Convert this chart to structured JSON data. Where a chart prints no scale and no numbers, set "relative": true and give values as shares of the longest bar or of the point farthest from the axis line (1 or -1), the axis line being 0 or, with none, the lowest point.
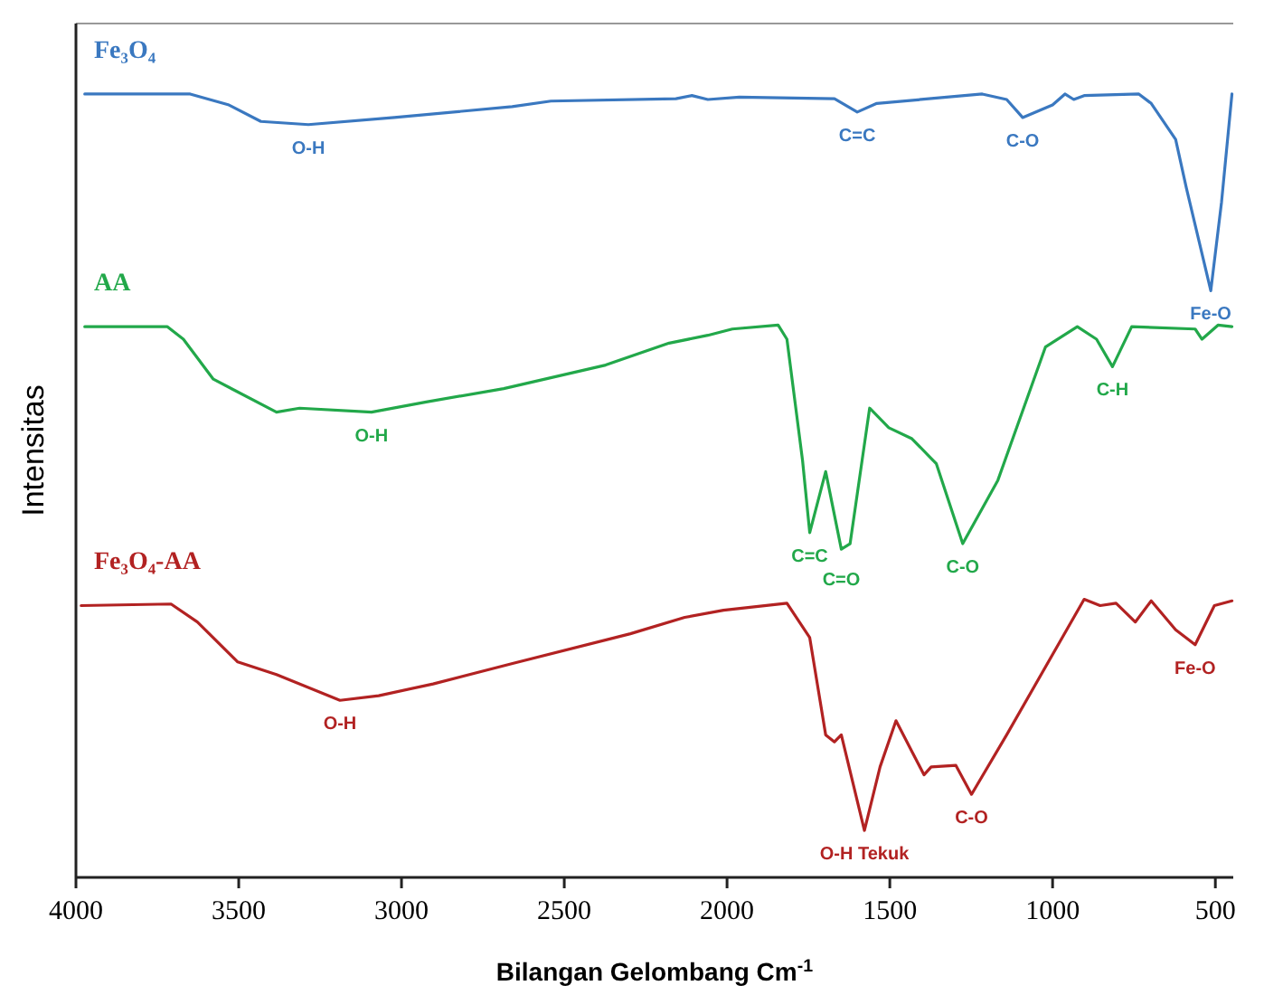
{
  "chart_data": {
    "type": "line",
    "relative": true,
    "xlabel": "Bilangan Gelombang Cm$^{-1}$",
    "ylabel": "Intensitas",
    "xlim": [
      4000,
      445
    ],
    "xticks": [
      4000,
      3500,
      3000,
      2500,
      2000,
      1500,
      1000,
      500
    ],
    "grid": false,
    "marker": "none",
    "line_style": "solid",
    "series": [
      {
        "name": "Fe₃O₄",
        "color": "#3a78c0",
        "x": [
          3973,
          3649,
          3530,
          3432,
          3286,
          3022,
          2660,
          2541,
          2157,
          2108,
          2059,
          1962,
          1670,
          1600,
          1540,
          1216,
          1141,
          1092,
          1000,
          962,
          935,
          903,
          735,
          697,
          622,
          589,
          514,
          481,
          449
        ],
        "values": [
          1.0,
          1.0,
          0.986,
          0.965,
          0.961,
          0.97,
          0.984,
          0.991,
          0.994,
          0.998,
          0.993,
          0.996,
          0.994,
          0.977,
          0.988,
          1.0,
          0.993,
          0.97,
          0.986,
          1.0,
          0.993,
          0.998,
          1.0,
          0.988,
          0.942,
          0.88,
          0.749,
          0.862,
          1.0
        ]
      },
      {
        "name": "AA",
        "color": "#22a84a",
        "x": [
          3973,
          3719,
          3670,
          3578,
          3384,
          3313,
          3092,
          2924,
          2686,
          2373,
          2178,
          2059,
          1984,
          1843,
          1816,
          1768,
          1746,
          1697,
          1649,
          1622,
          1562,
          1503,
          1432,
          1357,
          1276,
          1168,
          1022,
          924,
          865,
          816,
          757,
          562,
          541,
          492,
          449
        ],
        "values": [
          0.703,
          0.703,
          0.687,
          0.636,
          0.594,
          0.599,
          0.594,
          0.607,
          0.624,
          0.654,
          0.682,
          0.692,
          0.7,
          0.705,
          0.687,
          0.532,
          0.44,
          0.518,
          0.419,
          0.426,
          0.599,
          0.574,
          0.56,
          0.528,
          0.426,
          0.507,
          0.677,
          0.703,
          0.687,
          0.652,
          0.703,
          0.7,
          0.687,
          0.705,
          0.703
        ]
      },
      {
        "name": "Fe₃O₄-AA",
        "color": "#b22222",
        "x": [
          3984,
          3708,
          3627,
          3503,
          3384,
          3189,
          3070,
          2903,
          2659,
          2297,
          2130,
          2011,
          1816,
          1746,
          1697,
          1670,
          1649,
          1578,
          1530,
          1481,
          1395,
          1373,
          1297,
          1249,
          1141,
          903,
          854,
          805,
          746,
          697,
          622,
          562,
          503,
          449
        ],
        "values": [
          0.347,
          0.349,
          0.326,
          0.275,
          0.259,
          0.226,
          0.232,
          0.247,
          0.273,
          0.311,
          0.332,
          0.341,
          0.35,
          0.306,
          0.182,
          0.173,
          0.182,
          0.06,
          0.141,
          0.2,
          0.131,
          0.141,
          0.143,
          0.106,
          0.182,
          0.355,
          0.347,
          0.35,
          0.326,
          0.353,
          0.316,
          0.297,
          0.347,
          0.353
        ]
      }
    ],
    "annotations": [
      {
        "text": "O-H",
        "x": 3286,
        "y": 0.961
      },
      {
        "text": "C=C",
        "x": 1600,
        "y": 0.977
      },
      {
        "text": "C-O",
        "x": 1092,
        "y": 0.97
      },
      {
        "text": "Fe-O",
        "x": 514,
        "y": 0.749
      },
      {
        "text": "O-H",
        "x": 3092,
        "y": 0.594
      },
      {
        "text": "C=C",
        "x": 1746,
        "y": 0.44
      },
      {
        "text": "C=O",
        "x": 1649,
        "y": 0.419
      },
      {
        "text": "C-O",
        "x": 1276,
        "y": 0.426
      },
      {
        "text": "C-H",
        "x": 816,
        "y": 0.652
      },
      {
        "text": "O-H",
        "x": 3189,
        "y": 0.226
      },
      {
        "text": "O-H Tekuk",
        "x": 1578,
        "y": 0.06
      },
      {
        "text": "C-O",
        "x": 1249,
        "y": 0.106
      },
      {
        "text": "Fe-O",
        "x": 562,
        "y": 0.297
      }
    ]
  }
}
